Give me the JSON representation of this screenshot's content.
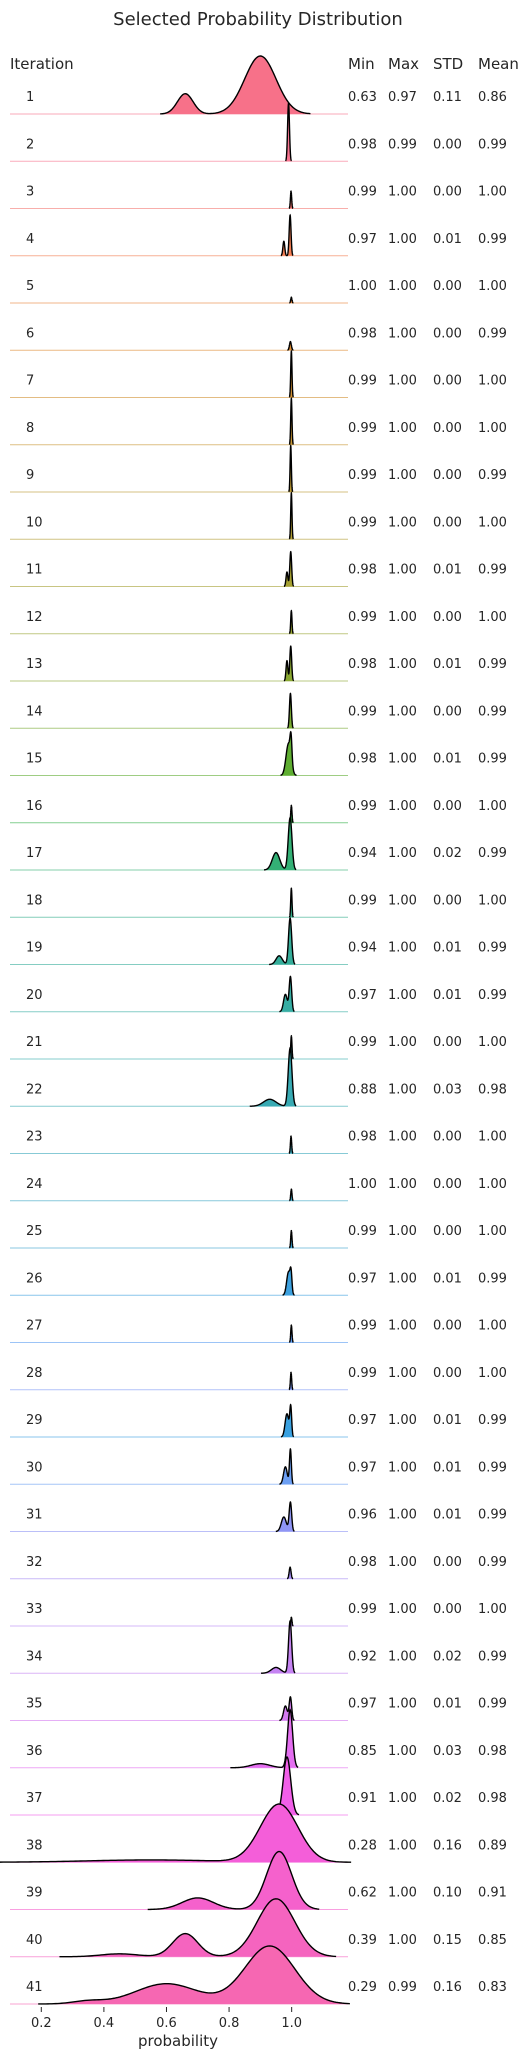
{
  "chart_data": {
    "type": "area",
    "title": "Selected Probability Distribution",
    "xlabel": "probability",
    "ylabel": "",
    "xlim": [
      0.1,
      1.18
    ],
    "xticks": [
      0.2,
      0.4,
      0.6,
      0.8,
      1.0
    ],
    "xtick_labels": [
      "0.2",
      "0.4",
      "0.6",
      "0.8",
      "1.0"
    ],
    "column_headers": [
      "Iteration",
      "Min",
      "Max",
      "STD",
      "Mean"
    ],
    "grid": false,
    "legend": "none",
    "rows": [
      {
        "iteration": "1",
        "min": "0.63",
        "max": "0.97",
        "std": "0.11",
        "mean": "0.86",
        "color": "#f77189",
        "peaks": [
          [
            0.66,
            0.025,
            0.35
          ],
          [
            0.9,
            0.05,
            1.0
          ]
        ]
      },
      {
        "iteration": "2",
        "min": "0.98",
        "max": "0.99",
        "std": "0.00",
        "mean": "0.99",
        "color": "#f7748f",
        "peaks": [
          [
            0.99,
            0.003,
            1.0
          ]
        ]
      },
      {
        "iteration": "3",
        "min": "0.99",
        "max": "1.00",
        "std": "0.00",
        "mean": "1.00",
        "color": "#f57a74",
        "peaks": [
          [
            0.998,
            0.002,
            0.3
          ]
        ]
      },
      {
        "iteration": "4",
        "min": "0.97",
        "max": "1.00",
        "std": "0.01",
        "mean": "0.99",
        "color": "#f27d52",
        "peaks": [
          [
            0.975,
            0.003,
            0.25
          ],
          [
            0.995,
            0.003,
            0.7
          ]
        ]
      },
      {
        "iteration": "5",
        "min": "1.00",
        "max": "1.00",
        "std": "0.00",
        "mean": "1.00",
        "color": "#e8853a",
        "peaks": [
          [
            0.999,
            0.002,
            0.1
          ]
        ]
      },
      {
        "iteration": "6",
        "min": "0.98",
        "max": "1.00",
        "std": "0.00",
        "mean": "0.99",
        "color": "#dd8b32",
        "peaks": [
          [
            0.996,
            0.003,
            0.15
          ]
        ]
      },
      {
        "iteration": "7",
        "min": "0.99",
        "max": "1.00",
        "std": "0.00",
        "mean": "1.00",
        "color": "#d29032",
        "peaks": [
          [
            0.999,
            0.002,
            0.8
          ]
        ]
      },
      {
        "iteration": "8",
        "min": "0.99",
        "max": "1.00",
        "std": "0.00",
        "mean": "1.00",
        "color": "#c79532",
        "peaks": [
          [
            0.999,
            0.002,
            0.8
          ]
        ]
      },
      {
        "iteration": "9",
        "min": "0.99",
        "max": "1.00",
        "std": "0.00",
        "mean": "0.99",
        "color": "#bc9932",
        "peaks": [
          [
            0.997,
            0.002,
            0.8
          ]
        ]
      },
      {
        "iteration": "10",
        "min": "0.99",
        "max": "1.00",
        "std": "0.00",
        "mean": "1.00",
        "color": "#b19d32",
        "peaks": [
          [
            0.999,
            0.002,
            0.8
          ]
        ]
      },
      {
        "iteration": "11",
        "min": "0.98",
        "max": "1.00",
        "std": "0.01",
        "mean": "0.99",
        "color": "#a5a031",
        "peaks": [
          [
            0.985,
            0.003,
            0.25
          ],
          [
            0.997,
            0.003,
            0.6
          ]
        ]
      },
      {
        "iteration": "12",
        "min": "0.99",
        "max": "1.00",
        "std": "0.00",
        "mean": "1.00",
        "color": "#97a431",
        "peaks": [
          [
            0.999,
            0.002,
            0.4
          ]
        ]
      },
      {
        "iteration": "13",
        "min": "0.98",
        "max": "1.00",
        "std": "0.01",
        "mean": "0.99",
        "color": "#89a731",
        "peaks": [
          [
            0.985,
            0.003,
            0.35
          ],
          [
            0.997,
            0.003,
            0.6
          ]
        ]
      },
      {
        "iteration": "14",
        "min": "0.99",
        "max": "1.00",
        "std": "0.00",
        "mean": "0.99",
        "color": "#78aa31",
        "peaks": [
          [
            0.996,
            0.003,
            0.6
          ]
        ]
      },
      {
        "iteration": "15",
        "min": "0.98",
        "max": "1.00",
        "std": "0.01",
        "mean": "0.99",
        "color": "#5ead31",
        "peaks": [
          [
            0.99,
            0.008,
            0.55
          ],
          [
            0.998,
            0.003,
            0.4
          ]
        ]
      },
      {
        "iteration": "16",
        "min": "0.99",
        "max": "1.00",
        "std": "0.00",
        "mean": "1.00",
        "color": "#32b049",
        "peaks": [
          [
            0.999,
            0.002,
            0.3
          ]
        ]
      },
      {
        "iteration": "17",
        "min": "0.94",
        "max": "1.00",
        "std": "0.02",
        "mean": "0.99",
        "color": "#33b075",
        "peaks": [
          [
            0.95,
            0.012,
            0.3
          ],
          [
            0.995,
            0.006,
            0.9
          ]
        ]
      },
      {
        "iteration": "18",
        "min": "0.99",
        "max": "1.00",
        "std": "0.00",
        "mean": "1.00",
        "color": "#34ae8b",
        "peaks": [
          [
            0.999,
            0.002,
            0.5
          ]
        ]
      },
      {
        "iteration": "19",
        "min": "0.94",
        "max": "1.00",
        "std": "0.01",
        "mean": "0.99",
        "color": "#35ad9a",
        "peaks": [
          [
            0.96,
            0.01,
            0.15
          ],
          [
            0.995,
            0.005,
            0.8
          ]
        ]
      },
      {
        "iteration": "20",
        "min": "0.97",
        "max": "1.00",
        "std": "0.01",
        "mean": "0.99",
        "color": "#36ada3",
        "peaks": [
          [
            0.98,
            0.006,
            0.3
          ],
          [
            0.996,
            0.004,
            0.6
          ]
        ]
      },
      {
        "iteration": "21",
        "min": "0.99",
        "max": "1.00",
        "std": "0.00",
        "mean": "1.00",
        "color": "#37abab",
        "peaks": [
          [
            0.999,
            0.002,
            0.4
          ]
        ]
      },
      {
        "iteration": "22",
        "min": "0.88",
        "max": "1.00",
        "std": "0.03",
        "mean": "0.98",
        "color": "#38aab3",
        "peaks": [
          [
            0.93,
            0.02,
            0.12
          ],
          [
            0.995,
            0.006,
            1.0
          ]
        ]
      },
      {
        "iteration": "23",
        "min": "0.98",
        "max": "1.00",
        "std": "0.00",
        "mean": "1.00",
        "color": "#39a8bb",
        "peaks": [
          [
            0.998,
            0.002,
            0.3
          ]
        ]
      },
      {
        "iteration": "24",
        "min": "1.00",
        "max": "1.00",
        "std": "0.00",
        "mean": "1.00",
        "color": "#3aa6c5",
        "peaks": [
          [
            0.999,
            0.002,
            0.2
          ]
        ]
      },
      {
        "iteration": "25",
        "min": "0.99",
        "max": "1.00",
        "std": "0.00",
        "mean": "1.00",
        "color": "#3ba3d0",
        "peaks": [
          [
            0.999,
            0.002,
            0.3
          ]
        ]
      },
      {
        "iteration": "26",
        "min": "0.97",
        "max": "1.00",
        "std": "0.01",
        "mean": "0.99",
        "color": "#3ca0de",
        "peaks": [
          [
            0.99,
            0.006,
            0.4
          ],
          [
            0.998,
            0.003,
            0.3
          ]
        ]
      },
      {
        "iteration": "27",
        "min": "0.99",
        "max": "1.00",
        "std": "0.00",
        "mean": "1.00",
        "color": "#5c9df2",
        "peaks": [
          [
            0.999,
            0.002,
            0.3
          ]
        ]
      },
      {
        "iteration": "28",
        "min": "0.99",
        "max": "1.00",
        "std": "0.00",
        "mean": "1.00",
        "color": "#7f9af5",
        "peaks": [
          [
            0.998,
            0.002,
            0.3
          ]
        ]
      },
      {
        "iteration": "29",
        "min": "0.97",
        "max": "1.00",
        "std": "0.01",
        "mean": "0.99",
        "color": "#3aa1e0",
        "peaks": [
          [
            0.985,
            0.006,
            0.4
          ],
          [
            0.997,
            0.003,
            0.5
          ]
        ]
      },
      {
        "iteration": "30",
        "min": "0.97",
        "max": "1.00",
        "std": "0.01",
        "mean": "0.99",
        "color": "#6c9ff3",
        "peaks": [
          [
            0.98,
            0.006,
            0.3
          ],
          [
            0.996,
            0.003,
            0.6
          ]
        ]
      },
      {
        "iteration": "31",
        "min": "0.96",
        "max": "1.00",
        "std": "0.01",
        "mean": "0.99",
        "color": "#8f95f5",
        "peaks": [
          [
            0.975,
            0.008,
            0.25
          ],
          [
            0.996,
            0.004,
            0.5
          ]
        ]
      },
      {
        "iteration": "32",
        "min": "0.98",
        "max": "1.00",
        "std": "0.00",
        "mean": "0.99",
        "color": "#a48cf4",
        "peaks": [
          [
            0.995,
            0.003,
            0.2
          ]
        ]
      },
      {
        "iteration": "33",
        "min": "0.99",
        "max": "1.00",
        "std": "0.00",
        "mean": "1.00",
        "color": "#b88af4",
        "peaks": [
          [
            0.999,
            0.002,
            0.15
          ]
        ]
      },
      {
        "iteration": "34",
        "min": "0.92",
        "max": "1.00",
        "std": "0.02",
        "mean": "0.99",
        "color": "#c583f2",
        "peaks": [
          [
            0.95,
            0.015,
            0.1
          ],
          [
            0.995,
            0.005,
            0.9
          ]
        ]
      },
      {
        "iteration": "35",
        "min": "0.97",
        "max": "1.00",
        "std": "0.01",
        "mean": "0.99",
        "color": "#d47bf1",
        "peaks": [
          [
            0.98,
            0.006,
            0.25
          ],
          [
            0.996,
            0.004,
            0.4
          ]
        ]
      },
      {
        "iteration": "36",
        "min": "0.85",
        "max": "1.00",
        "std": "0.03",
        "mean": "0.98",
        "color": "#e46ef0",
        "peaks": [
          [
            0.9,
            0.03,
            0.07
          ],
          [
            0.995,
            0.008,
            1.0
          ]
        ]
      },
      {
        "iteration": "37",
        "min": "0.91",
        "max": "1.00",
        "std": "0.02",
        "mean": "0.98",
        "color": "#f15fe8",
        "peaks": [
          [
            0.985,
            0.012,
            1.0
          ]
        ]
      },
      {
        "iteration": "38",
        "min": "0.28",
        "max": "1.00",
        "std": "0.16",
        "mean": "0.89",
        "color": "#f45ed9",
        "peaks": [
          [
            0.55,
            0.2,
            0.04
          ],
          [
            0.96,
            0.06,
            1.0
          ]
        ]
      },
      {
        "iteration": "39",
        "min": "0.62",
        "max": "1.00",
        "std": "0.10",
        "mean": "0.91",
        "color": "#f561cc",
        "peaks": [
          [
            0.7,
            0.05,
            0.2
          ],
          [
            0.96,
            0.04,
            1.0
          ]
        ]
      },
      {
        "iteration": "40",
        "min": "0.39",
        "max": "1.00",
        "std": "0.15",
        "mean": "0.85",
        "color": "#f564bf",
        "peaks": [
          [
            0.45,
            0.06,
            0.05
          ],
          [
            0.66,
            0.04,
            0.4
          ],
          [
            0.95,
            0.06,
            1.0
          ]
        ]
      },
      {
        "iteration": "41",
        "min": "0.29",
        "max": "0.99",
        "std": "0.16",
        "mean": "0.83",
        "color": "#f667b2",
        "peaks": [
          [
            0.35,
            0.05,
            0.05
          ],
          [
            0.6,
            0.1,
            0.35
          ],
          [
            0.93,
            0.08,
            1.0
          ]
        ]
      }
    ]
  }
}
